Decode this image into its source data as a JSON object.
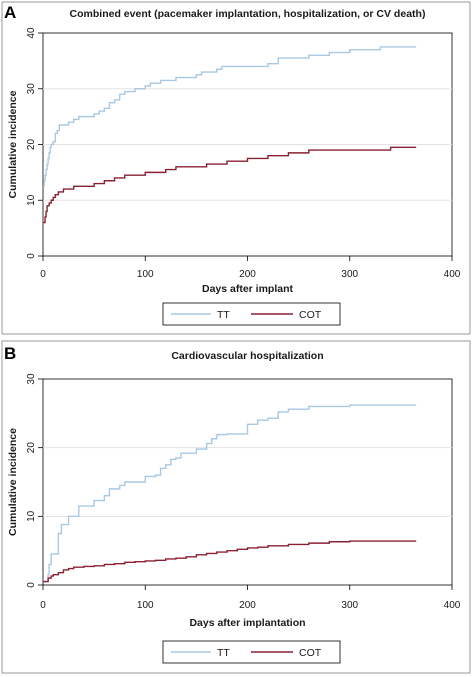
{
  "chart_data": [
    {
      "panel_letter": "A",
      "type": "line",
      "step": true,
      "title": "Combined event (pacemaker implantation, hospitalization, or CV death)",
      "xlabel": "Days after implant",
      "ylabel": "Cumulative incidence",
      "xlim": [
        0,
        400
      ],
      "ylim": [
        0,
        40
      ],
      "xticks": [
        0,
        100,
        200,
        300,
        400
      ],
      "yticks": [
        0,
        10,
        20,
        30,
        40
      ],
      "grid": "horizontal",
      "legend_position": "bottom",
      "series": [
        {
          "name": "TT",
          "color": "#a9c8e4",
          "x": [
            0,
            1,
            2,
            3,
            4,
            5,
            6,
            7,
            8,
            10,
            12,
            14,
            16,
            18,
            20,
            25,
            30,
            35,
            40,
            50,
            55,
            60,
            62,
            65,
            70,
            75,
            78,
            80,
            90,
            100,
            105,
            110,
            115,
            120,
            130,
            140,
            150,
            155,
            160,
            170,
            175,
            180,
            200,
            210,
            220,
            230,
            260,
            270,
            280,
            300,
            320,
            330,
            340,
            365
          ],
          "y": [
            12.5,
            13.5,
            14.5,
            15.5,
            16.5,
            17.5,
            18.5,
            19.5,
            20,
            20.5,
            22,
            22.5,
            23.5,
            23.5,
            23.5,
            24,
            24.5,
            25,
            25,
            25.5,
            26,
            26.5,
            26.5,
            27.5,
            28,
            29,
            29,
            29.5,
            30,
            30.5,
            31,
            31,
            31.5,
            31.5,
            32,
            32,
            32.5,
            33,
            33,
            33.5,
            34,
            34,
            34,
            34,
            34.5,
            35.5,
            36,
            36,
            36.5,
            37,
            37,
            37.5,
            37.5,
            37.5
          ]
        },
        {
          "name": "COT",
          "color": "#8b2030",
          "x": [
            0,
            2,
            3,
            4,
            6,
            8,
            10,
            12,
            15,
            20,
            25,
            30,
            35,
            40,
            50,
            55,
            60,
            65,
            70,
            80,
            90,
            100,
            105,
            110,
            120,
            130,
            140,
            150,
            160,
            170,
            180,
            200,
            210,
            220,
            240,
            260,
            280,
            300,
            330,
            340,
            365
          ],
          "y": [
            6,
            7,
            8,
            9,
            9.5,
            10,
            10.5,
            11,
            11.5,
            12,
            12,
            12.5,
            12.5,
            12.5,
            13,
            13,
            13.5,
            13.5,
            14,
            14.5,
            14.5,
            15,
            15,
            15,
            15.5,
            16,
            16,
            16,
            16.5,
            16.5,
            17,
            17.5,
            17.5,
            18,
            18.5,
            19,
            19,
            19,
            19,
            19.5,
            19.5
          ]
        }
      ]
    },
    {
      "panel_letter": "B",
      "type": "line",
      "step": true,
      "title": "Cardiovascular hospitalization",
      "xlabel": "Days after implantation",
      "ylabel": "Cumulative incidence",
      "xlim": [
        0,
        400
      ],
      "ylim": [
        0,
        30
      ],
      "xticks": [
        0,
        100,
        200,
        300,
        400
      ],
      "yticks": [
        0,
        10,
        20,
        30
      ],
      "grid": "horizontal",
      "legend_position": "bottom",
      "series": [
        {
          "name": "TT",
          "color": "#a9c8e4",
          "x": [
            0,
            5,
            6,
            8,
            10,
            15,
            18,
            20,
            25,
            30,
            35,
            40,
            50,
            55,
            60,
            65,
            75,
            80,
            90,
            100,
            110,
            115,
            120,
            125,
            130,
            135,
            140,
            150,
            160,
            165,
            170,
            175,
            180,
            190,
            200,
            210,
            220,
            230,
            240,
            260,
            300,
            365
          ],
          "y": [
            0.5,
            1.5,
            3,
            4.5,
            4.5,
            7.5,
            8.8,
            8.8,
            10,
            10,
            11.5,
            11.5,
            12.3,
            12.3,
            13,
            14,
            14.5,
            15,
            15,
            15.8,
            16,
            17,
            17.5,
            18.3,
            18.5,
            19.2,
            19.2,
            19.8,
            20.6,
            21.3,
            21.9,
            21.9,
            22,
            22,
            23.4,
            24,
            24.3,
            25.2,
            25.6,
            26,
            26.2,
            26.2
          ]
        },
        {
          "name": "COT",
          "color": "#8b2030",
          "x": [
            0,
            5,
            8,
            10,
            15,
            20,
            25,
            30,
            40,
            50,
            60,
            70,
            80,
            90,
            100,
            110,
            120,
            130,
            140,
            150,
            160,
            170,
            180,
            190,
            200,
            210,
            220,
            240,
            260,
            280,
            300,
            365
          ],
          "y": [
            0.5,
            1,
            1.3,
            1.5,
            1.8,
            2.2,
            2.4,
            2.6,
            2.7,
            2.8,
            3,
            3.1,
            3.3,
            3.4,
            3.5,
            3.6,
            3.8,
            3.9,
            4.1,
            4.4,
            4.6,
            4.8,
            5,
            5.2,
            5.4,
            5.5,
            5.7,
            5.9,
            6.1,
            6.3,
            6.4,
            6.4
          ]
        }
      ]
    }
  ]
}
